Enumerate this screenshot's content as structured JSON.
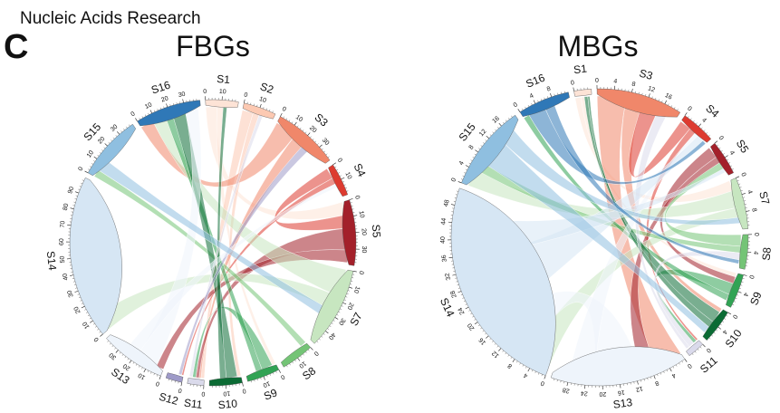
{
  "header": {
    "journal": "Nucleic Acids Research",
    "panel": "C"
  },
  "diagrams": [
    {
      "title": "FBGs",
      "sectors": [
        {
          "label": "S1",
          "color": "#fde3d6",
          "ticks": [
            "0",
            "10"
          ]
        },
        {
          "label": "S2",
          "color": "#fcc9b2",
          "ticks": [
            "0",
            "10"
          ]
        },
        {
          "label": "S3",
          "color": "#f0876a",
          "ticks": [
            "0",
            "10",
            "20",
            "30"
          ]
        },
        {
          "label": "S4",
          "color": "#dd3b30",
          "ticks": [
            "0",
            "10"
          ]
        },
        {
          "label": "S5",
          "color": "#a3202a",
          "ticks": [
            "0",
            "10",
            "20",
            "30"
          ]
        },
        {
          "label": "S7",
          "color": "#c7e6c0",
          "ticks": [
            "0",
            "10",
            "20",
            "30",
            "40"
          ]
        },
        {
          "label": "S8",
          "color": "#74c476",
          "ticks": [
            "0",
            "10"
          ]
        },
        {
          "label": "S9",
          "color": "#31a354",
          "ticks": [
            "0",
            "10"
          ]
        },
        {
          "label": "S10",
          "color": "#0b6b34",
          "ticks": [
            "0",
            "10"
          ]
        },
        {
          "label": "S11",
          "color": "#dadaeb",
          "ticks": [
            "0"
          ]
        },
        {
          "label": "S12",
          "color": "#9e9ac8",
          "ticks": [
            "0"
          ]
        },
        {
          "label": "S13",
          "color": "#eef4fb",
          "ticks": [
            "0",
            "10",
            "20",
            "30"
          ]
        },
        {
          "label": "S14",
          "color": "#d6e6f4",
          "ticks": [
            "0",
            "10",
            "20",
            "30",
            "40",
            "50",
            "60",
            "70",
            "80",
            "90"
          ]
        },
        {
          "label": "S15",
          "color": "#8fbfe0",
          "ticks": [
            "0",
            "10",
            "20",
            "30"
          ]
        },
        {
          "label": "S16",
          "color": "#2f78b7",
          "ticks": [
            "0",
            "10",
            "20",
            "30"
          ]
        }
      ]
    },
    {
      "title": "MBGs",
      "sectors": [
        {
          "label": "S1",
          "color": "#fde3d6",
          "ticks": [
            "0"
          ]
        },
        {
          "label": "S3",
          "color": "#f0876a",
          "ticks": [
            "0",
            "4",
            "8",
            "12",
            "16"
          ]
        },
        {
          "label": "S4",
          "color": "#dd3b30",
          "ticks": [
            "0",
            "4"
          ]
        },
        {
          "label": "S5",
          "color": "#a3202a",
          "ticks": [
            "0",
            "4"
          ]
        },
        {
          "label": "S7",
          "color": "#c7e6c0",
          "ticks": [
            "0",
            "4",
            "8"
          ]
        },
        {
          "label": "S8",
          "color": "#74c476",
          "ticks": [
            "0",
            "4"
          ]
        },
        {
          "label": "S9",
          "color": "#31a354",
          "ticks": [
            "0",
            "4"
          ]
        },
        {
          "label": "S10",
          "color": "#0b6b34",
          "ticks": [
            "0",
            "4"
          ]
        },
        {
          "label": "S11",
          "color": "#dadaeb",
          "ticks": [
            "0"
          ]
        },
        {
          "label": "S13",
          "color": "#eef4fb",
          "ticks": [
            "0",
            "4",
            "8",
            "12",
            "16",
            "20",
            "24",
            "28"
          ]
        },
        {
          "label": "S14",
          "color": "#d6e6f4",
          "ticks": [
            "0",
            "4",
            "8",
            "12",
            "16",
            "20",
            "24",
            "28",
            "32",
            "36",
            "40",
            "44",
            "48"
          ]
        },
        {
          "label": "S15",
          "color": "#8fbfe0",
          "ticks": [
            "0",
            "4",
            "8",
            "12",
            "16"
          ]
        },
        {
          "label": "S16",
          "color": "#2f78b7",
          "ticks": [
            "0",
            "4",
            "8"
          ]
        }
      ]
    }
  ]
}
